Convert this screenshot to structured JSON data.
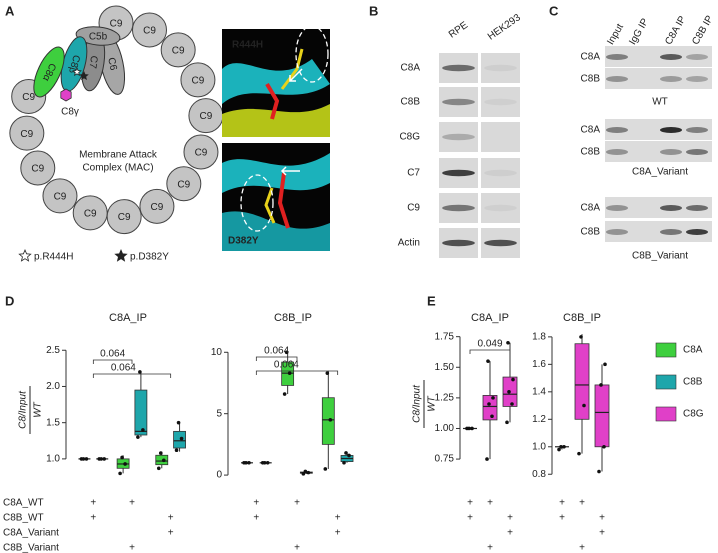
{
  "panel_labels": [
    "A",
    "B",
    "C",
    "D",
    "E"
  ],
  "panel_a": {
    "ring": [
      "C9",
      "C9",
      "C9",
      "C9",
      "C9",
      "C9",
      "C9",
      "C9",
      "C9",
      "C9",
      "C9",
      "C9",
      "C9",
      "C9"
    ],
    "c8a": "C8α",
    "c8b": "C8β",
    "c7": "C7",
    "c6": "C6",
    "c5b": "C5b",
    "c8g": "C8γ",
    "mac_label": [
      "Membrane Attack",
      "Complex (MAC)"
    ],
    "legend": [
      "p.R444H",
      "p.D382Y"
    ],
    "structures": [
      "R444H",
      "D382Y"
    ]
  },
  "panel_b": {
    "columns": [
      "RPE",
      "HEK293"
    ],
    "rows": [
      "C8A",
      "C8B",
      "C8G",
      "C7",
      "C9",
      "Actin"
    ]
  },
  "panel_c": {
    "columns": [
      "Input",
      "IgG IP",
      "C8A IP",
      "C8B IP"
    ],
    "groups": [
      {
        "rows": [
          "C8A",
          "C8B"
        ],
        "label": "WT"
      },
      {
        "rows": [
          "C8A",
          "C8B"
        ],
        "label": "C8A_Variant"
      },
      {
        "rows": [
          "C8A",
          "C8B"
        ],
        "label": "C8B_Variant"
      }
    ]
  },
  "conditions": {
    "rows": [
      "C8A_WT",
      "C8B_WT",
      "C8A_Variant",
      "C8B_Variant"
    ],
    "sign": "+",
    "design": [
      [
        true,
        true,
        false,
        false
      ],
      [
        true,
        false,
        false,
        true
      ],
      [
        false,
        true,
        true,
        false
      ]
    ]
  },
  "legend": [
    {
      "name": "C8A",
      "color": "#3ecf3e"
    },
    {
      "name": "C8B",
      "color": "#1ea6ab"
    },
    {
      "name": "C8G",
      "color": "#e040c8"
    }
  ],
  "chart_data": [
    {
      "type": "box",
      "title": "C8A_IP",
      "y_label": {
        "numerator": "C8/Input",
        "denominator": "WT"
      },
      "ylim": [
        0.75,
        2.6
      ],
      "yticks": [
        {
          "value": 1.0,
          "label": "1.0"
        },
        1.5,
        {
          "value": 2.0,
          "label": "2.0"
        },
        2.5
      ],
      "annotations": [
        {
          "text": "0.064",
          "from": 0,
          "to": 1
        },
        {
          "text": "0.064",
          "from": 0,
          "to": 2
        }
      ],
      "series": [
        {
          "name": "C8A",
          "color": "#3ecf3e",
          "values": [
            {
              "min": 1.0,
              "q1": 1.0,
              "median": 1.0,
              "q3": 1.0,
              "max": 1.0,
              "points": [
                1.0,
                1.0,
                1.0
              ]
            },
            {
              "min": 0.8,
              "q1": 0.87,
              "median": 0.93,
              "q3": 1.0,
              "max": 1.05,
              "points": [
                0.8,
                0.93,
                1.02
              ]
            },
            {
              "min": 0.87,
              "q1": 0.92,
              "median": 0.97,
              "q3": 1.05,
              "max": 1.1,
              "points": [
                0.87,
                0.98,
                1.08
              ]
            }
          ]
        },
        {
          "name": "C8B",
          "color": "#1ea6ab",
          "values": [
            {
              "min": 1.0,
              "q1": 1.0,
              "median": 1.0,
              "q3": 1.0,
              "max": 1.0,
              "points": [
                1.0,
                1.0,
                1.0
              ]
            },
            {
              "min": 1.3,
              "q1": 1.33,
              "median": 1.38,
              "q3": 1.95,
              "max": 2.2,
              "points": [
                1.3,
                1.4,
                2.2
              ]
            },
            {
              "min": 1.1,
              "q1": 1.15,
              "median": 1.25,
              "q3": 1.38,
              "max": 1.5,
              "points": [
                1.12,
                1.28,
                1.5
              ]
            }
          ]
        }
      ]
    },
    {
      "type": "box",
      "title": "C8B_IP",
      "ylim": [
        -0.4,
        11
      ],
      "yticks": [
        0,
        5,
        10
      ],
      "annotations": [
        {
          "text": "0.064",
          "from": 0,
          "to": 1
        },
        {
          "text": "0.064",
          "from": 0,
          "to": 2
        }
      ],
      "series": [
        {
          "name": "C8A",
          "color": "#3ecf3e",
          "values": [
            {
              "min": 1.0,
              "q1": 1.0,
              "median": 1.0,
              "q3": 1.0,
              "max": 1.0,
              "points": [
                1.0,
                1.0,
                1.0
              ]
            },
            {
              "min": 6.6,
              "q1": 7.3,
              "median": 8.3,
              "q3": 9.2,
              "max": 10,
              "points": [
                6.6,
                8.3,
                10
              ]
            },
            {
              "min": 0.5,
              "q1": 2.5,
              "median": 4.5,
              "q3": 6.3,
              "max": 8.5,
              "points": [
                0.5,
                4.5,
                8.3
              ]
            }
          ]
        },
        {
          "name": "C8B",
          "color": "#1ea6ab",
          "values": [
            {
              "min": 1.0,
              "q1": 1.0,
              "median": 1.0,
              "q3": 1.0,
              "max": 1.0,
              "points": [
                1.0,
                1.0,
                1.0
              ]
            },
            {
              "min": 0.1,
              "q1": 0.15,
              "median": 0.2,
              "q3": 0.25,
              "max": 0.3,
              "points": [
                0.1,
                0.2,
                0.3
              ]
            },
            {
              "min": 1.0,
              "q1": 1.1,
              "median": 1.35,
              "q3": 1.6,
              "max": 1.8,
              "points": [
                1.0,
                1.6,
                1.8
              ]
            }
          ]
        }
      ]
    },
    {
      "type": "box",
      "title": "C8A_IP",
      "y_label": {
        "numerator": "C8/Input",
        "denominator": "WT"
      },
      "ylim": [
        0.62,
        1.78
      ],
      "yticks": [
        0.75,
        {
          "value": 1.0,
          "label": "1.00"
        },
        1.25,
        {
          "value": 1.5,
          "label": "1.50"
        },
        1.75
      ],
      "annotations": [
        {
          "text": "0.049",
          "from": 0,
          "to": 2
        }
      ],
      "series": [
        {
          "name": "C8G",
          "color": "#e040c8",
          "values": [
            {
              "min": 1.0,
              "q1": 1.0,
              "median": 1.0,
              "q3": 1.0,
              "max": 1.0,
              "points": [
                1.0,
                1.0,
                1.0
              ]
            },
            {
              "min": 0.75,
              "q1": 1.07,
              "median": 1.18,
              "q3": 1.27,
              "max": 1.55,
              "points": [
                0.75,
                1.1,
                1.2,
                1.25,
                1.55
              ]
            },
            {
              "min": 1.05,
              "q1": 1.18,
              "median": 1.28,
              "q3": 1.42,
              "max": 1.7,
              "points": [
                1.05,
                1.2,
                1.3,
                1.4,
                1.7
              ]
            }
          ]
        }
      ]
    },
    {
      "type": "box",
      "title": "C8B_IP",
      "ylim": [
        0.78,
        1.85
      ],
      "yticks": [
        0.8,
        {
          "value": 1.0,
          "label": "1.0"
        },
        1.2,
        1.4,
        1.6,
        1.8
      ],
      "series": [
        {
          "name": "C8G",
          "color": "#e040c8",
          "values": [
            {
              "min": 0.98,
              "q1": 1.0,
              "median": 1.0,
              "q3": 1.0,
              "max": 1.0,
              "points": [
                0.98,
                1.0,
                1.0
              ]
            },
            {
              "min": 0.95,
              "q1": 1.2,
              "median": 1.45,
              "q3": 1.75,
              "max": 1.82,
              "points": [
                0.95,
                1.3,
                1.8
              ]
            },
            {
              "min": 0.82,
              "q1": 1.0,
              "median": 1.25,
              "q3": 1.45,
              "max": 1.6,
              "points": [
                0.82,
                1.0,
                1.45,
                1.6
              ]
            }
          ]
        }
      ]
    }
  ]
}
